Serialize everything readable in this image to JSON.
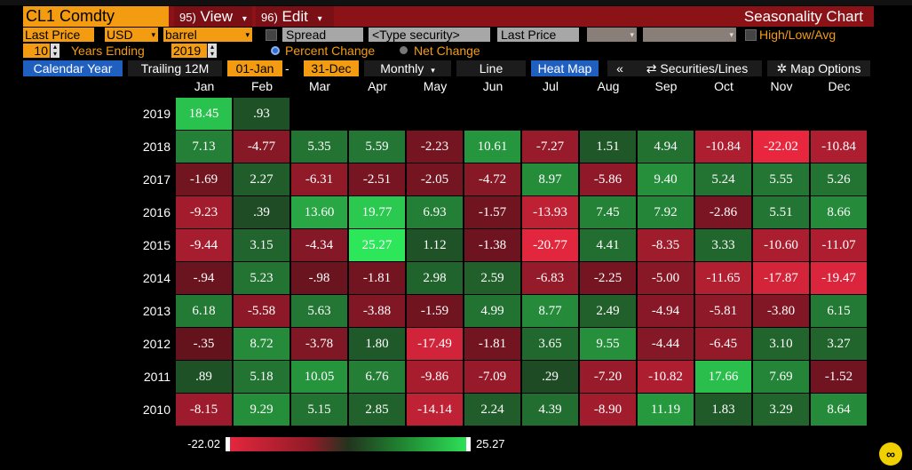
{
  "header": {
    "ticker": "CL1 Comdty",
    "view_num": "95)",
    "view_label": "View",
    "edit_num": "96)",
    "edit_label": "Edit",
    "title": "Seasonality Chart"
  },
  "row1": {
    "field": "Last Price",
    "currency": "USD",
    "unit": "barrel",
    "spread_label": "Spread",
    "security_placeholder": "<Type security>",
    "field2": "Last Price",
    "hlavg_label": "High/Low/Avg"
  },
  "row2": {
    "years": "10",
    "years_ending_label": "Years Ending",
    "end_year": "2019",
    "percent_change_label": "Percent Change",
    "net_change_label": "Net Change"
  },
  "toolbar": {
    "calendar_year": "Calendar Year",
    "trailing": "Trailing 12M",
    "start": "01-Jan",
    "end": "31-Dec",
    "monthly": "Monthly",
    "line": "Line",
    "heat_map": "Heat Map",
    "collapse": "«",
    "securities": "Securities/Lines",
    "map_options": "Map Options"
  },
  "months": [
    "Jan",
    "Feb",
    "Mar",
    "Apr",
    "May",
    "Jun",
    "Jul",
    "Aug",
    "Sep",
    "Oct",
    "Nov",
    "Dec"
  ],
  "rows": [
    {
      "year": "2019",
      "values": [
        "18.45",
        ".93"
      ]
    },
    {
      "year": "2018",
      "values": [
        "7.13",
        "-4.77",
        "5.35",
        "5.59",
        "-2.23",
        "10.61",
        "-7.27",
        "1.51",
        "4.94",
        "-10.84",
        "-22.02",
        "-10.84"
      ]
    },
    {
      "year": "2017",
      "values": [
        "-1.69",
        "2.27",
        "-6.31",
        "-2.51",
        "-2.05",
        "-4.72",
        "8.97",
        "-5.86",
        "9.40",
        "5.24",
        "5.55",
        "5.26"
      ]
    },
    {
      "year": "2016",
      "values": [
        "-9.23",
        ".39",
        "13.60",
        "19.77",
        "6.93",
        "-1.57",
        "-13.93",
        "7.45",
        "7.92",
        "-2.86",
        "5.51",
        "8.66"
      ]
    },
    {
      "year": "2015",
      "values": [
        "-9.44",
        "3.15",
        "-4.34",
        "25.27",
        "1.12",
        "-1.38",
        "-20.77",
        "4.41",
        "-8.35",
        "3.33",
        "-10.60",
        "-11.07"
      ]
    },
    {
      "year": "2014",
      "values": [
        "-.94",
        "5.23",
        "-.98",
        "-1.81",
        "2.98",
        "2.59",
        "-6.83",
        "-2.25",
        "-5.00",
        "-11.65",
        "-17.87",
        "-19.47"
      ]
    },
    {
      "year": "2013",
      "values": [
        "6.18",
        "-5.58",
        "5.63",
        "-3.88",
        "-1.59",
        "4.99",
        "8.77",
        "2.49",
        "-4.94",
        "-5.81",
        "-3.80",
        "6.15"
      ]
    },
    {
      "year": "2012",
      "values": [
        "-.35",
        "8.72",
        "-3.78",
        "1.80",
        "-17.49",
        "-1.81",
        "3.65",
        "9.55",
        "-4.44",
        "-6.45",
        "3.10",
        "3.27"
      ]
    },
    {
      "year": "2011",
      "values": [
        ".89",
        "5.18",
        "10.05",
        "6.76",
        "-9.86",
        "-7.09",
        ".29",
        "-7.20",
        "-10.82",
        "17.66",
        "7.69",
        "-1.52"
      ]
    },
    {
      "year": "2010",
      "values": [
        "-8.15",
        "9.29",
        "5.15",
        "2.85",
        "-14.14",
        "2.24",
        "4.39",
        "-8.90",
        "11.19",
        "1.83",
        "3.29",
        "8.64"
      ]
    }
  ],
  "legend": {
    "min": "-22.02",
    "max": "25.27"
  },
  "colors": {
    "accent": "#f39c12",
    "header_red": "#8b1318",
    "positive_max": "#2ee65a",
    "negative_max": "#e8273f"
  }
}
